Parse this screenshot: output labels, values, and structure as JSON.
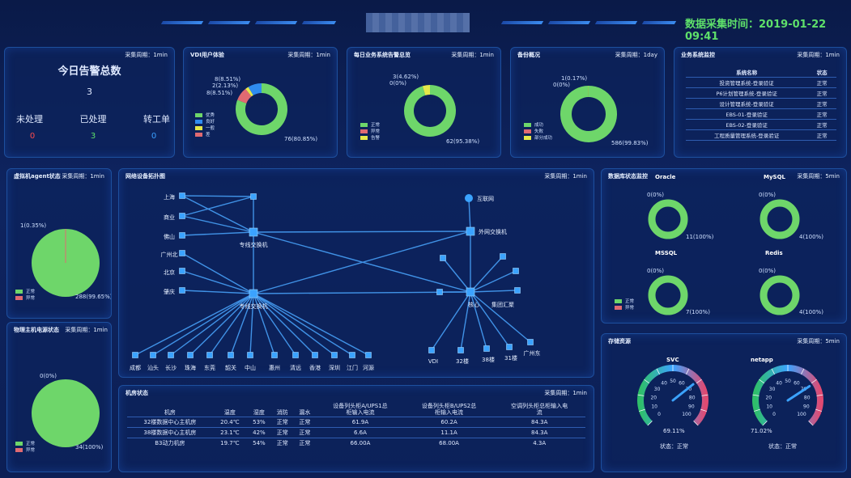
{
  "header": {
    "title_label": "数据采集时间：",
    "datetime": "2019-01-22 09:41",
    "title_color": "#5ee06a"
  },
  "alarms": {
    "cycle": "采集周期：1min",
    "title": "今日告警总数",
    "total": "3",
    "labels": [
      "未处理",
      "已处理",
      "转工单"
    ],
    "values": [
      "0",
      "3",
      "0"
    ],
    "value_colors": [
      "#ff4b4b",
      "#5ee06a",
      "#3aa0ff"
    ]
  },
  "vdi": {
    "title": "VDI用户体验",
    "cycle": "采集周期：1min",
    "labels": [
      "8(8.51%)",
      "2(2.13%)",
      "8(8.51%)",
      "76(80.85%)"
    ],
    "legend": [
      "优秀",
      "良好",
      "一般",
      "差"
    ],
    "donut": [
      0.8085,
      0.0851,
      0.0213,
      0.0851
    ]
  },
  "business": {
    "title": "每日业务系统告警总览",
    "cycle": "采集周期：1min",
    "labels": [
      "3(4.62%)",
      "0(0%)",
      "62(95.38%)"
    ],
    "legend": [
      "正常",
      "异常",
      "告警"
    ],
    "donut": [
      0.9538,
      0.0462,
      0.0
    ]
  },
  "backup": {
    "title": "备份概况",
    "cycle": "采集周期：1day",
    "labels": [
      "1(0.17%)",
      "0(0%)",
      "586(99.83%)"
    ],
    "legend": [
      "成功",
      "失败",
      "部分成功"
    ],
    "donut": [
      0.9983,
      0.0017,
      0.0
    ]
  },
  "services": {
    "title": "业务系统监控",
    "cycle": "采集周期：1min",
    "headers": [
      "系统名称",
      "状态"
    ],
    "rows": [
      [
        "投资管理系统-登录验证",
        "正常"
      ],
      [
        "P6计划管理系统-登录验证",
        "正常"
      ],
      [
        "设计管理系统-登录验证",
        "正常"
      ],
      [
        "EBS-01-登录验证",
        "正常"
      ],
      [
        "EBS-02-登录验证",
        "正常"
      ],
      [
        "工程质量管理系统-登录验证",
        "正常"
      ]
    ]
  },
  "vm_agent": {
    "title": "虚拟机agent状态",
    "cycle": "采集周期：1min",
    "labels": [
      "1(0.35%)",
      "288(99.65%)"
    ],
    "legend": [
      "正常",
      "异常"
    ]
  },
  "physical": {
    "title": "物理主机电源状态",
    "cycle": "采集周期：1min",
    "labels": [
      "0(0%)",
      "34(100%)"
    ],
    "legend": [
      "正常",
      "异常"
    ]
  },
  "topology": {
    "title": "网络设备拓扑图",
    "cycle": "采集周期：1min",
    "left_nodes": [
      "上海",
      "商业",
      "佛山",
      "广州北",
      "北京",
      "肇庆"
    ],
    "switch1": "专线交换机",
    "switch2": "专线交换机",
    "internet": "互联网",
    "ext_switch": "外网交换机",
    "core": "核心",
    "group": "集团汇聚",
    "bottom_nodes": [
      "成都",
      "汕头",
      "长沙",
      "珠海",
      "东莞",
      "韶关",
      "中山",
      "惠州",
      "清远",
      "香港",
      "深圳",
      "江门",
      "河源"
    ],
    "right_bottom": [
      "VDI",
      "32楼",
      "38楼",
      "31楼",
      "广州东"
    ]
  },
  "rooms": {
    "title": "机房状态",
    "cycle": "采集周期：1min",
    "headers": [
      "机房",
      "温度",
      "湿度",
      "消防",
      "漏水",
      "设备列头柜A/UPS1总\n柜输入电流",
      "设备列头柜B/UPS2总\n柜输入电流",
      "空调列头柜总柜输入电\n流"
    ],
    "rows": [
      [
        "32楼数据中心主机房",
        "20.4℃",
        "53%",
        "正常",
        "正常",
        "61.9A",
        "60.2A",
        "84.3A"
      ],
      [
        "38楼数据中心主机房",
        "23.1℃",
        "42%",
        "正常",
        "正常",
        "6.6A",
        "11.1A",
        "84.3A"
      ],
      [
        "B3动力机房",
        "19.7℃",
        "54%",
        "正常",
        "正常",
        "66.00A",
        "68.00A",
        "4.3A"
      ]
    ]
  },
  "db": {
    "title": "数据库状态监控",
    "cycle": "采集周期：5min",
    "legend": [
      "正常",
      "异常"
    ],
    "items": [
      {
        "name": "Oracle",
        "top": "0(0%)",
        "bottom": "11(100%)"
      },
      {
        "name": "MySQL",
        "top": "0(0%)",
        "bottom": "4(100%)"
      },
      {
        "name": "MSSQL",
        "top": "0(0%)",
        "bottom": "7(100%)"
      },
      {
        "name": "Redis",
        "top": "0(0%)",
        "bottom": "4(100%)"
      }
    ]
  },
  "storage": {
    "title": "存储资源",
    "cycle": "采集周期：5min",
    "gauges": [
      {
        "name": "SVC",
        "value": "69.11%",
        "pct": 0.6911,
        "status": "状态：正常"
      },
      {
        "name": "netapp",
        "value": "71.02%",
        "pct": 0.7102,
        "status": "状态：正常"
      }
    ],
    "ticks": [
      "0",
      "10",
      "20",
      "30",
      "40",
      "50",
      "60",
      "70",
      "80",
      "90",
      "100"
    ]
  },
  "colors": {
    "green": "#6ed66a",
    "blue": "#2f8cf0",
    "yellow": "#e4e84a",
    "red": "#e06a72"
  }
}
